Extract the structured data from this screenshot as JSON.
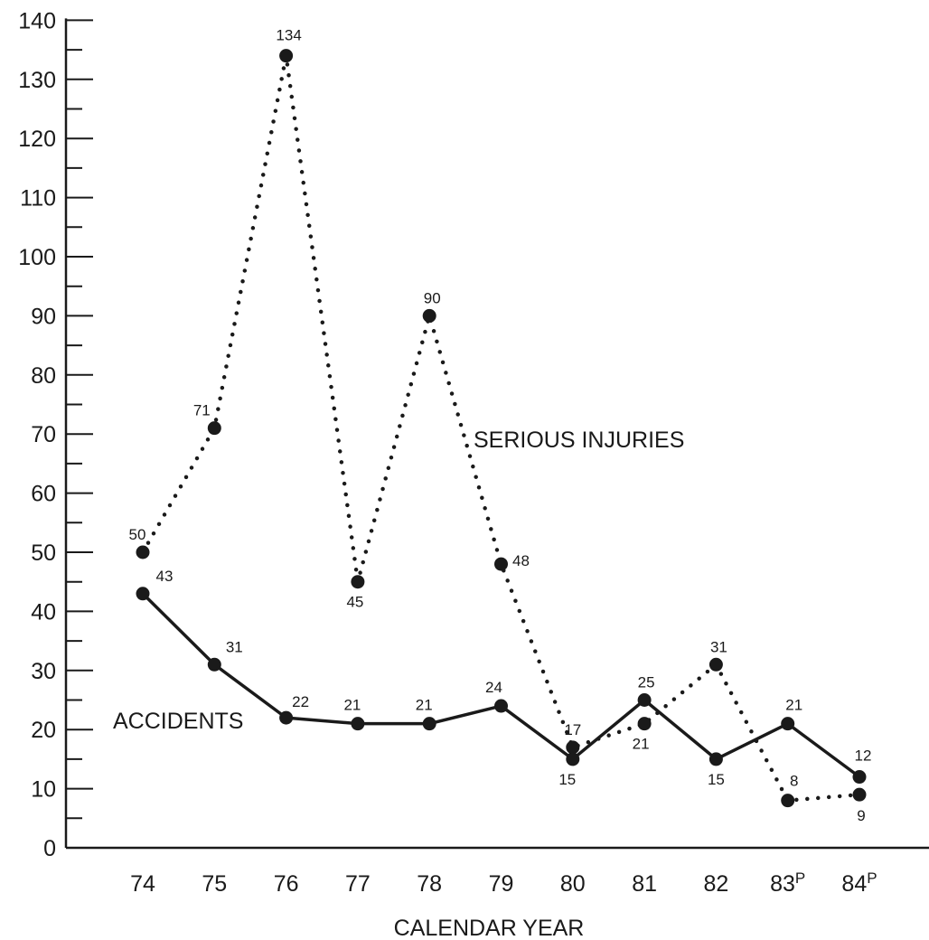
{
  "chart_data": {
    "type": "line",
    "categories": [
      "74",
      "75",
      "76",
      "77",
      "78",
      "79",
      "80",
      "81",
      "82",
      "83",
      "84"
    ],
    "category_superscripts": [
      "",
      "",
      "",
      "",
      "",
      "",
      "",
      "",
      "",
      "P",
      "P"
    ],
    "ylim": [
      0,
      140
    ],
    "yticks": [
      0,
      10,
      20,
      30,
      40,
      50,
      60,
      70,
      80,
      90,
      100,
      110,
      120,
      130,
      140
    ],
    "xlabel": "CALENDAR YEAR",
    "ylabel": "",
    "grid": false,
    "series": [
      {
        "name": "SERIOUS INJURIES",
        "style": "dotted",
        "values": [
          50,
          71,
          134,
          45,
          90,
          48,
          17,
          21,
          31,
          8,
          9
        ],
        "labels": [
          "50",
          "71",
          "134",
          "45",
          "90",
          "48",
          "17",
          "21",
          "31",
          "8",
          "9"
        ]
      },
      {
        "name": "ACCIDENTS",
        "style": "solid",
        "values": [
          43,
          31,
          22,
          21,
          21,
          24,
          15,
          25,
          15,
          21,
          12
        ],
        "labels": [
          "43",
          "31",
          "22",
          "21",
          "21",
          "24",
          "15",
          "25",
          "15",
          "21",
          "12"
        ]
      }
    ],
    "colors": {
      "ink": "#1a1a1a",
      "background": "#ffffff"
    }
  }
}
